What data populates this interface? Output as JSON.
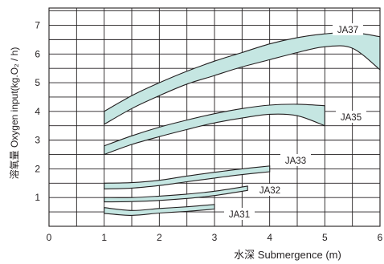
{
  "chart_data": {
    "type": "area",
    "xlabel": "水深  Submergence (m)",
    "ylabel": "溶氧量 Oxygen input(kg.O₂ / h)",
    "xlim": [
      0,
      6
    ],
    "ylim": [
      0,
      7.6
    ],
    "x_ticks": [
      "0",
      "1",
      "2",
      "3",
      "4",
      "5",
      "6"
    ],
    "y_ticks": [
      "1",
      "2",
      "3",
      "4",
      "5",
      "6",
      "7"
    ],
    "grid": true,
    "band_color": "#c5e6e2",
    "series": [
      {
        "name": "JA37",
        "upper": [
          [
            1.0,
            4.0
          ],
          [
            1.5,
            4.55
          ],
          [
            2.0,
            5.0
          ],
          [
            2.5,
            5.4
          ],
          [
            3.0,
            5.75
          ],
          [
            3.5,
            6.05
          ],
          [
            4.0,
            6.35
          ],
          [
            4.5,
            6.57
          ],
          [
            5.0,
            6.7
          ],
          [
            5.5,
            6.75
          ],
          [
            6.0,
            6.6
          ]
        ],
        "lower": [
          [
            1.0,
            3.55
          ],
          [
            1.5,
            4.1
          ],
          [
            2.0,
            4.55
          ],
          [
            2.5,
            4.95
          ],
          [
            3.0,
            5.25
          ],
          [
            3.5,
            5.55
          ],
          [
            4.0,
            5.8
          ],
          [
            4.5,
            6.05
          ],
          [
            5.0,
            6.25
          ],
          [
            5.5,
            6.2
          ],
          [
            6.0,
            5.45
          ]
        ]
      },
      {
        "name": "JA35",
        "upper": [
          [
            1.0,
            2.8
          ],
          [
            1.5,
            3.15
          ],
          [
            2.0,
            3.45
          ],
          [
            2.5,
            3.7
          ],
          [
            3.0,
            3.92
          ],
          [
            3.5,
            4.1
          ],
          [
            4.0,
            4.22
          ],
          [
            4.5,
            4.25
          ],
          [
            5.0,
            4.2
          ]
        ],
        "lower": [
          [
            1.0,
            2.5
          ],
          [
            1.5,
            2.85
          ],
          [
            2.0,
            3.12
          ],
          [
            2.5,
            3.37
          ],
          [
            3.0,
            3.6
          ],
          [
            3.5,
            3.77
          ],
          [
            4.0,
            3.9
          ],
          [
            4.5,
            3.85
          ],
          [
            5.0,
            3.5
          ]
        ]
      },
      {
        "name": "JA33",
        "upper": [
          [
            1.0,
            1.5
          ],
          [
            1.5,
            1.52
          ],
          [
            2.0,
            1.6
          ],
          [
            2.5,
            1.75
          ],
          [
            3.0,
            1.88
          ],
          [
            3.5,
            2.0
          ],
          [
            4.0,
            2.1
          ]
        ],
        "lower": [
          [
            1.0,
            1.3
          ],
          [
            1.5,
            1.33
          ],
          [
            2.0,
            1.42
          ],
          [
            2.5,
            1.55
          ],
          [
            3.0,
            1.68
          ],
          [
            3.5,
            1.8
          ],
          [
            4.0,
            1.9
          ]
        ]
      },
      {
        "name": "JA32",
        "upper": [
          [
            1.0,
            1.0
          ],
          [
            1.5,
            1.0
          ],
          [
            2.0,
            1.05
          ],
          [
            2.5,
            1.12
          ],
          [
            3.0,
            1.22
          ],
          [
            3.6,
            1.4
          ]
        ],
        "lower": [
          [
            1.0,
            0.85
          ],
          [
            1.5,
            0.86
          ],
          [
            2.0,
            0.9
          ],
          [
            2.5,
            0.97
          ],
          [
            3.0,
            1.07
          ],
          [
            3.6,
            1.25
          ]
        ]
      },
      {
        "name": "JA31",
        "upper": [
          [
            1.0,
            0.65
          ],
          [
            1.5,
            0.55
          ],
          [
            2.0,
            0.62
          ],
          [
            2.5,
            0.68
          ],
          [
            3.0,
            0.76
          ]
        ],
        "lower": [
          [
            1.0,
            0.45
          ],
          [
            1.5,
            0.38
          ],
          [
            2.0,
            0.46
          ],
          [
            2.5,
            0.52
          ],
          [
            3.0,
            0.6
          ]
        ]
      }
    ]
  }
}
